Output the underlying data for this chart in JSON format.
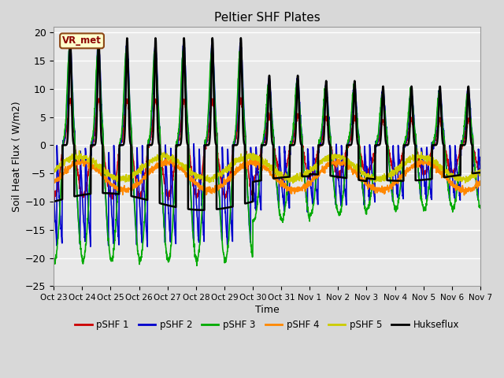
{
  "title": "Peltier SHF Plates",
  "xlabel": "Time",
  "ylabel": "Soil Heat Flux ( W/m2)",
  "ylim": [
    -25,
    21
  ],
  "yticks": [
    -25,
    -20,
    -15,
    -10,
    -5,
    0,
    5,
    10,
    15,
    20
  ],
  "xtick_labels": [
    "Oct 23",
    "Oct 24",
    "Oct 25",
    "Oct 26",
    "Oct 27",
    "Oct 28",
    "Oct 29",
    "Oct 30",
    "Oct 31",
    "Nov 1",
    "Nov 2",
    "Nov 3",
    "Nov 4",
    "Nov 5",
    "Nov 6",
    "Nov 7"
  ],
  "legend_labels": [
    "pSHF 1",
    "pSHF 2",
    "pSHF 3",
    "pSHF 4",
    "pSHF 5",
    "Hukseflux"
  ],
  "legend_colors": [
    "#cc0000",
    "#0000cc",
    "#00aa00",
    "#ff8800",
    "#cccc00",
    "#000000"
  ],
  "line_widths": [
    1.2,
    1.2,
    1.2,
    1.2,
    1.2,
    1.8
  ],
  "vr_met_label": "VR_met",
  "bg_color": "#d8d8d8",
  "plot_bg_color": "#e8e8e8",
  "n_days": 15,
  "ppd": 144
}
